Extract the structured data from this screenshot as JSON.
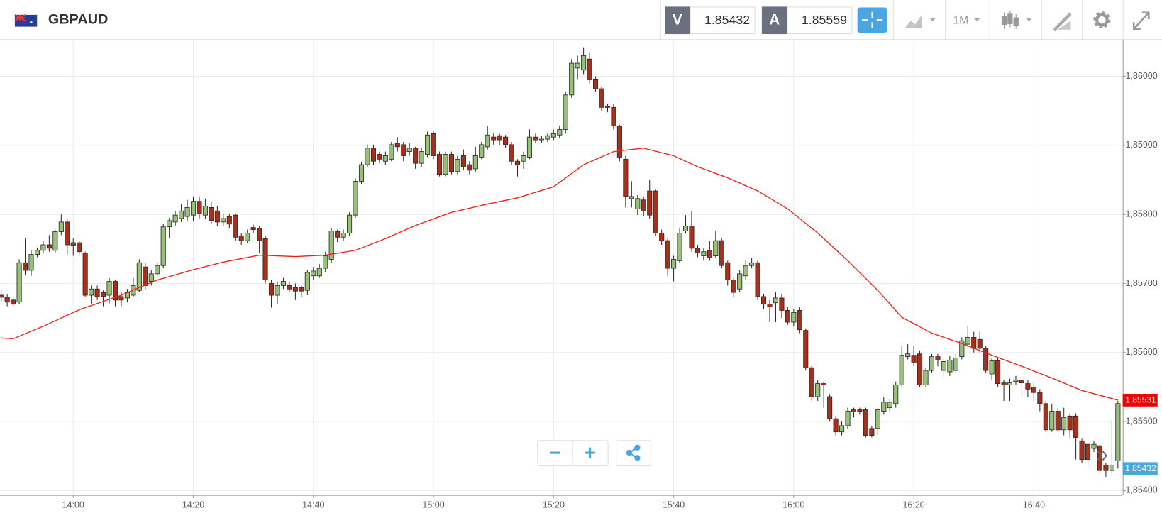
{
  "toolbar": {
    "symbol": "GBPAUD",
    "bid_label": "V",
    "bid": "1.85432",
    "ask_label": "A",
    "ask": "1.85559",
    "timeframe": "1M"
  },
  "chart_data": {
    "type": "candlestick",
    "x": [
      828,
      829,
      830,
      831,
      832,
      833,
      834,
      835,
      836,
      837,
      838,
      839,
      840,
      841,
      842,
      843,
      844,
      845,
      846,
      847,
      848,
      849,
      850,
      851,
      852,
      853,
      854,
      855,
      856,
      857,
      858,
      859,
      860,
      861,
      862,
      863,
      864,
      865,
      866,
      867,
      868,
      869,
      870,
      871,
      872,
      873,
      874,
      875,
      876,
      877,
      878,
      879,
      880,
      881,
      882,
      883,
      884,
      885,
      886,
      887,
      888,
      889,
      890,
      891,
      892,
      893,
      894,
      895,
      896,
      897,
      898,
      899,
      900,
      901,
      902,
      903,
      904,
      905,
      906,
      907,
      908,
      909,
      910,
      911,
      912,
      913,
      914,
      915,
      916,
      917,
      918,
      919,
      920,
      921,
      922,
      923,
      924,
      925,
      926,
      927,
      928,
      929,
      930,
      931,
      932,
      933,
      934,
      935,
      936,
      937,
      938,
      939,
      940,
      941,
      942,
      943,
      944,
      945,
      946,
      947,
      948,
      949,
      950,
      951,
      952,
      953,
      954,
      955,
      956,
      957,
      958,
      959,
      960,
      961,
      962,
      963,
      964,
      965,
      966,
      967,
      968,
      969,
      970,
      971,
      972,
      973,
      974,
      975,
      976,
      977,
      978,
      979,
      980,
      981,
      982,
      983,
      984,
      985,
      986,
      987,
      988,
      989,
      990,
      991,
      992,
      993,
      994,
      995,
      996,
      997,
      998,
      999,
      1000,
      1001,
      1002,
      1003,
      1004,
      1005,
      1006,
      1007,
      1008,
      1009,
      1010,
      1011,
      1012,
      1013,
      1014
    ],
    "open": [
      1.85683,
      1.8568,
      1.85676,
      1.85673,
      1.8573,
      1.85719,
      1.85742,
      1.85748,
      1.85756,
      1.85748,
      1.85775,
      1.85789,
      1.85759,
      1.85759,
      1.85744,
      1.85683,
      1.85692,
      1.85687,
      1.85683,
      1.85703,
      1.85681,
      1.85679,
      1.85683,
      1.8569,
      1.85724,
      1.85703,
      1.85714,
      1.85726,
      1.85782,
      1.85789,
      1.85794,
      1.85797,
      1.85799,
      1.85819,
      1.85799,
      1.8581,
      1.85805,
      1.85789,
      1.85797,
      1.85799,
      1.85769,
      1.85762,
      1.85781,
      1.8578,
      1.85765,
      1.857,
      1.85683,
      1.85697,
      1.85697,
      1.85694,
      1.85694,
      1.8569,
      1.85711,
      1.85711,
      1.85722,
      1.85735,
      1.85775,
      1.85767,
      1.85773,
      1.85799,
      1.85848,
      1.85872,
      1.85896,
      1.85887,
      1.85877,
      1.8588,
      1.85903,
      1.85901,
      1.85891,
      1.85896,
      1.85874,
      1.85887,
      1.85917,
      1.85887,
      1.85858,
      1.85887,
      1.85862,
      1.85885,
      1.85872,
      1.85866,
      1.85883,
      1.85898,
      1.85912,
      1.85914,
      1.85912,
      1.85901,
      1.85877,
      1.85877,
      1.85883,
      1.85912,
      1.85907,
      1.85909,
      1.85912,
      1.85915,
      1.85923,
      1.85973,
      1.86012,
      1.86009,
      1.86025,
      1.85995,
      1.85982,
      1.85957,
      1.85955,
      1.85928,
      1.8588,
      1.85823,
      1.85808,
      1.85821,
      1.85834,
      1.85834,
      1.85773,
      1.85762,
      1.85722,
      1.85733,
      1.85776,
      1.85783,
      1.85751,
      1.8574,
      1.85748,
      1.8574,
      1.85762,
      1.8573,
      1.85705,
      1.85692,
      1.85711,
      1.85726,
      1.8573,
      1.85681,
      1.8567,
      1.85672,
      1.85679,
      1.85661,
      1.85644,
      1.85661,
      1.85632,
      1.85578,
      1.85536,
      1.85555,
      1.85536,
      1.85504,
      1.85485,
      1.85494,
      1.85517,
      1.85517,
      1.85517,
      1.8549,
      1.8549,
      1.85515,
      1.8552,
      1.85526,
      1.85553,
      1.85594,
      1.85596,
      1.85598,
      1.85553,
      1.85574,
      1.85594,
      1.85574,
      1.85572,
      1.85574,
      1.85594,
      1.85612,
      1.85622,
      1.85619,
      1.85606,
      1.85569,
      1.85588,
      1.85556,
      1.85553,
      1.85558,
      1.8556,
      1.85555,
      1.8555,
      1.85542,
      1.85526,
      1.85488,
      1.85515,
      1.85488,
      1.85508,
      1.85508,
      1.85472,
      1.85467,
      1.85461,
      1.85465,
      1.85437,
      1.85429,
      1.85443
    ],
    "high": [
      1.8569,
      1.85685,
      1.8568,
      1.85735,
      1.85765,
      1.85748,
      1.85752,
      1.85762,
      1.8577,
      1.85778,
      1.858,
      1.85793,
      1.85765,
      1.85762,
      1.85746,
      1.85697,
      1.85697,
      1.8569,
      1.85708,
      1.85705,
      1.85687,
      1.85692,
      1.85708,
      1.85735,
      1.8573,
      1.85719,
      1.8573,
      1.85786,
      1.85795,
      1.85805,
      1.85815,
      1.85821,
      1.85826,
      1.85826,
      1.85823,
      1.85819,
      1.85812,
      1.85801,
      1.85801,
      1.85801,
      1.85773,
      1.85778,
      1.85785,
      1.85783,
      1.85769,
      1.85705,
      1.85703,
      1.85708,
      1.85703,
      1.857,
      1.85697,
      1.8572,
      1.85724,
      1.85728,
      1.85746,
      1.8578,
      1.85778,
      1.85778,
      1.85803,
      1.85852,
      1.85876,
      1.85901,
      1.85901,
      1.85891,
      1.85891,
      1.85905,
      1.85912,
      1.85905,
      1.85903,
      1.85898,
      1.85896,
      1.8592,
      1.8592,
      1.85891,
      1.85891,
      1.85891,
      1.85885,
      1.85894,
      1.85877,
      1.85898,
      1.85905,
      1.85928,
      1.85917,
      1.85917,
      1.85915,
      1.85905,
      1.8588,
      1.85891,
      1.85923,
      1.85917,
      1.85914,
      1.85917,
      1.85923,
      1.85928,
      1.85978,
      1.86025,
      1.8603,
      1.86042,
      1.86035,
      1.86,
      1.85985,
      1.8596,
      1.8596,
      1.8593,
      1.85885,
      1.85848,
      1.85828,
      1.85826,
      1.8585,
      1.85836,
      1.85778,
      1.85765,
      1.8574,
      1.8578,
      1.85799,
      1.85805,
      1.85756,
      1.85751,
      1.85762,
      1.85776,
      1.85765,
      1.85733,
      1.85708,
      1.85719,
      1.85733,
      1.85737,
      1.85733,
      1.85685,
      1.85676,
      1.85687,
      1.85685,
      1.85666,
      1.85663,
      1.85666,
      1.85635,
      1.85582,
      1.8556,
      1.85558,
      1.8554,
      1.85508,
      1.855,
      1.8552,
      1.8552,
      1.8552,
      1.8552,
      1.85494,
      1.8552,
      1.85536,
      1.85532,
      1.85558,
      1.8561,
      1.85612,
      1.8561,
      1.85603,
      1.85578,
      1.85598,
      1.85598,
      1.85592,
      1.85595,
      1.85598,
      1.85622,
      1.85638,
      1.8563,
      1.8563,
      1.8561,
      1.85592,
      1.85592,
      1.8556,
      1.85562,
      1.85566,
      1.85564,
      1.8556,
      1.85556,
      1.85547,
      1.8553,
      1.85526,
      1.8552,
      1.8552,
      1.85512,
      1.85512,
      1.85476,
      1.85472,
      1.85472,
      1.85472,
      1.8544,
      1.855,
      1.8553
    ],
    "low": [
      1.85673,
      1.85667,
      1.85665,
      1.8567,
      1.85712,
      1.85711,
      1.85738,
      1.85744,
      1.85746,
      1.85744,
      1.8577,
      1.85742,
      1.8574,
      1.8574,
      1.85681,
      1.85671,
      1.85676,
      1.85667,
      1.85671,
      1.85667,
      1.85667,
      1.85673,
      1.8568,
      1.85687,
      1.8569,
      1.85697,
      1.8571,
      1.85722,
      1.85765,
      1.85783,
      1.85789,
      1.85791,
      1.85791,
      1.85794,
      1.85794,
      1.85786,
      1.85783,
      1.85783,
      1.8578,
      1.85762,
      1.85756,
      1.85758,
      1.85773,
      1.85744,
      1.857,
      1.85665,
      1.8567,
      1.85692,
      1.85687,
      1.85676,
      1.85681,
      1.85683,
      1.85705,
      1.85708,
      1.85716,
      1.8573,
      1.8576,
      1.85762,
      1.85769,
      1.85795,
      1.85844,
      1.85868,
      1.85872,
      1.85874,
      1.85872,
      1.85877,
      1.85891,
      1.85877,
      1.85885,
      1.85866,
      1.85869,
      1.85883,
      1.8588,
      1.85855,
      1.85855,
      1.85858,
      1.85858,
      1.85864,
      1.85858,
      1.85862,
      1.8588,
      1.85894,
      1.85901,
      1.85901,
      1.85896,
      1.85872,
      1.85855,
      1.85866,
      1.8588,
      1.85903,
      1.85903,
      1.85905,
      1.85907,
      1.8591,
      1.85917,
      1.85969,
      1.85995,
      1.86003,
      1.8599,
      1.85978,
      1.8595,
      1.85948,
      1.85923,
      1.85877,
      1.8581,
      1.8581,
      1.85799,
      1.85797,
      1.85794,
      1.85769,
      1.85756,
      1.85711,
      1.85703,
      1.8573,
      1.85773,
      1.85746,
      1.85738,
      1.85733,
      1.85733,
      1.85737,
      1.85722,
      1.85697,
      1.85681,
      1.85687,
      1.85705,
      1.85722,
      1.85676,
      1.85663,
      1.85644,
      1.85644,
      1.8565,
      1.8564,
      1.85638,
      1.85628,
      1.85574,
      1.8553,
      1.8553,
      1.8552,
      1.855,
      1.8548,
      1.8548,
      1.8549,
      1.85506,
      1.8551,
      1.85477,
      1.85477,
      1.8548,
      1.8551,
      1.85515,
      1.8552,
      1.8555,
      1.8559,
      1.8558,
      1.8555,
      1.8555,
      1.8557,
      1.8558,
      1.85565,
      1.85566,
      1.8557,
      1.8559,
      1.85606,
      1.856,
      1.856,
      1.8557,
      1.8556,
      1.8555,
      1.8553,
      1.8553,
      1.85553,
      1.85536,
      1.85536,
      1.85528,
      1.85515,
      1.85485,
      1.85485,
      1.85485,
      1.8548,
      1.85477,
      1.85445,
      1.8544,
      1.85432,
      1.85456,
      1.85415,
      1.8542,
      1.85426,
      1.85432
    ],
    "close": [
      1.8568,
      1.85673,
      1.8567,
      1.8573,
      1.85719,
      1.85742,
      1.85748,
      1.85756,
      1.85751,
      1.85775,
      1.85789,
      1.85756,
      1.85755,
      1.85746,
      1.85683,
      1.85692,
      1.85681,
      1.85681,
      1.85703,
      1.85676,
      1.85676,
      1.85687,
      1.85697,
      1.8573,
      1.85697,
      1.85714,
      1.85726,
      1.85782,
      1.85791,
      1.85799,
      1.85805,
      1.8581,
      1.85819,
      1.85801,
      1.85812,
      1.85791,
      1.85789,
      1.85794,
      1.85786,
      1.85767,
      1.85762,
      1.85773,
      1.85778,
      1.85762,
      1.85705,
      1.85683,
      1.85697,
      1.85703,
      1.85692,
      1.85689,
      1.85689,
      1.85716,
      1.85718,
      1.85722,
      1.8574,
      1.85776,
      1.85767,
      1.85773,
      1.85799,
      1.85848,
      1.85872,
      1.85896,
      1.85877,
      1.8588,
      1.85885,
      1.85901,
      1.85898,
      1.85885,
      1.85896,
      1.85874,
      1.85891,
      1.85915,
      1.85885,
      1.85858,
      1.85887,
      1.85862,
      1.8588,
      1.85869,
      1.85864,
      1.85885,
      1.85901,
      1.85915,
      1.85907,
      1.85907,
      1.85901,
      1.85877,
      1.85872,
      1.85885,
      1.85912,
      1.85907,
      1.85909,
      1.85914,
      1.85917,
      1.85923,
      1.85973,
      1.86019,
      1.86019,
      1.8603,
      1.85995,
      1.85982,
      1.85955,
      1.85955,
      1.85928,
      1.85883,
      1.85826,
      1.85826,
      1.85823,
      1.85805,
      1.85799,
      1.85773,
      1.85762,
      1.85722,
      1.85735,
      1.85773,
      1.85783,
      1.85751,
      1.85744,
      1.85746,
      1.85737,
      1.85762,
      1.85726,
      1.85705,
      1.85687,
      1.85714,
      1.85726,
      1.8573,
      1.85681,
      1.8567,
      1.85666,
      1.85679,
      1.85661,
      1.85644,
      1.85658,
      1.85633,
      1.85578,
      1.85536,
      1.85555,
      1.85553,
      1.85504,
      1.85485,
      1.85494,
      1.85515,
      1.85514,
      1.85515,
      1.8548,
      1.8548,
      1.85517,
      1.85528,
      1.85528,
      1.85553,
      1.85596,
      1.85598,
      1.85585,
      1.85553,
      1.85574,
      1.85594,
      1.85589,
      1.85587,
      1.85589,
      1.85592,
      1.85617,
      1.85622,
      1.85606,
      1.85606,
      1.85574,
      1.85588,
      1.85555,
      1.85553,
      1.85556,
      1.8556,
      1.85556,
      1.85547,
      1.85542,
      1.85526,
      1.85488,
      1.85515,
      1.85488,
      1.85506,
      1.85488,
      1.85477,
      1.85445,
      1.85445,
      1.85467,
      1.85429,
      1.85429,
      1.85437,
      1.85526
    ],
    "up_color": "#97c178",
    "down_color": "#a8301b",
    "overlay_x": [
      828,
      830,
      835,
      841,
      848,
      854,
      860,
      865,
      871,
      877,
      882,
      887,
      892,
      897,
      903,
      909,
      914,
      920,
      925,
      930,
      935,
      940,
      944,
      949,
      954,
      959,
      964,
      969,
      974,
      978,
      983,
      988,
      993,
      998,
      1003,
      1008,
      1014
    ],
    "overlay_values": [
      1.85621,
      1.8562,
      1.85638,
      1.85662,
      1.85683,
      1.85705,
      1.8572,
      1.85731,
      1.85741,
      1.85739,
      1.85741,
      1.85748,
      1.85765,
      1.85784,
      1.85803,
      1.85815,
      1.85824,
      1.8584,
      1.85872,
      1.85891,
      1.85896,
      1.85885,
      1.85869,
      1.85853,
      1.85834,
      1.85808,
      1.85773,
      1.85733,
      1.8569,
      1.85651,
      1.85628,
      1.85613,
      1.85596,
      1.8558,
      1.85563,
      1.85545,
      1.85531
    ],
    "overlay_color": "#f0201a",
    "xlim": [
      827.8,
      1014.8
    ],
    "ylim": [
      1.853936,
      1.860515
    ],
    "xticks": [
      {
        "value": 840,
        "label": "14:00"
      },
      {
        "value": 860,
        "label": "14:20"
      },
      {
        "value": 880,
        "label": "14:40"
      },
      {
        "value": 900,
        "label": "15:00"
      },
      {
        "value": 920,
        "label": "15:20"
      },
      {
        "value": 940,
        "label": "15:40"
      },
      {
        "value": 960,
        "label": "16:00"
      },
      {
        "value": 980,
        "label": "16:20"
      },
      {
        "value": 1000,
        "label": "16:40"
      }
    ],
    "yticks": [
      {
        "value": 1.854,
        "label": "1,85400"
      },
      {
        "value": 1.855,
        "label": "1,85500"
      },
      {
        "value": 1.856,
        "label": "1,85600"
      },
      {
        "value": 1.857,
        "label": "1,85700"
      },
      {
        "value": 1.858,
        "label": "1,85800"
      },
      {
        "value": 1.859,
        "label": "1,85900"
      },
      {
        "value": 1.86,
        "label": "1,86000"
      }
    ],
    "grid": true,
    "markers": [
      {
        "value": 1.85531,
        "label": "1,85531",
        "color": "#f00000"
      },
      {
        "value": 1.85432,
        "label": "1,85432",
        "color": "#4aa6df"
      }
    ]
  }
}
